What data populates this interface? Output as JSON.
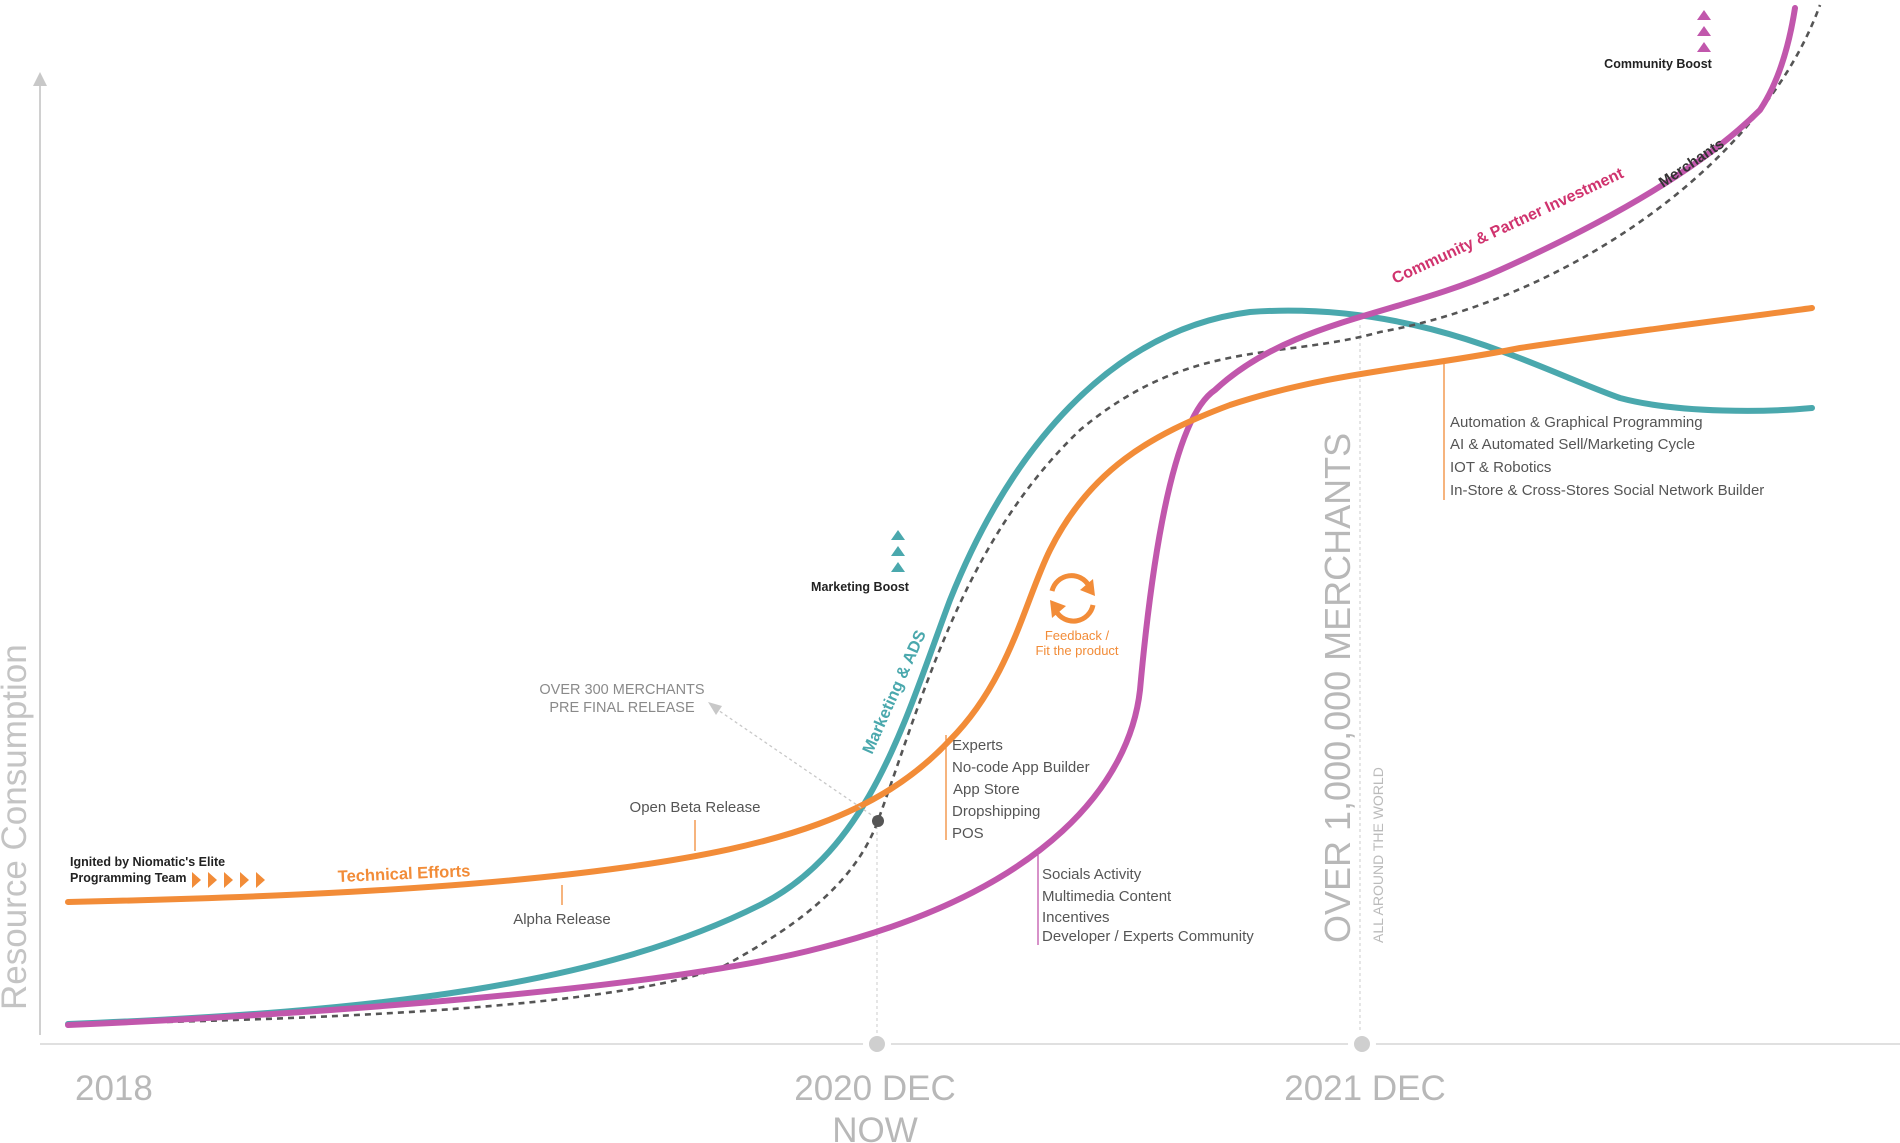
{
  "axes": {
    "y_label": "Resource Consumption",
    "x_ticks": [
      "2018",
      "2020 DEC",
      "NOW",
      "2021 DEC"
    ]
  },
  "curves": {
    "technical": {
      "label": "Technical Efforts",
      "color": "#f28c38"
    },
    "marketing": {
      "label": "Marketing & ADS",
      "color": "#4aa8ad"
    },
    "community": {
      "label": "Community & Partner Investment",
      "color": "#c157ac",
      "label_color": "#d0336e"
    },
    "merchants": {
      "label": "Merchants",
      "color": "#555555"
    }
  },
  "annotations": {
    "ignited": [
      "Ignited by Niomatic's Elite",
      "Programming Team"
    ],
    "alpha": "Alpha Release",
    "open_beta": "Open Beta Release",
    "over300": [
      "OVER 300 MERCHANTS",
      "PRE FINAL RELEASE"
    ],
    "marketing_boost": "Marketing Boost",
    "community_boost": "Community Boost",
    "feedback": [
      "Feedback /",
      "Fit the product"
    ],
    "over_million": "OVER 1,000,000 MERCHANTS",
    "all_around": "ALL AROUND THE WORLD"
  },
  "lists": {
    "tech_features": [
      "Experts",
      "No-code App Builder",
      "App Store",
      "Dropshipping",
      "POS"
    ],
    "community_features": [
      "Socials Activity",
      "Multimedia Content",
      "Incentives",
      "Developer / Experts Community"
    ],
    "future_features": [
      "Automation & Graphical Programming",
      "AI & Automated Sell/Marketing Cycle",
      "IOT & Robotics",
      "In-Store & Cross-Stores Social Network Builder"
    ]
  }
}
